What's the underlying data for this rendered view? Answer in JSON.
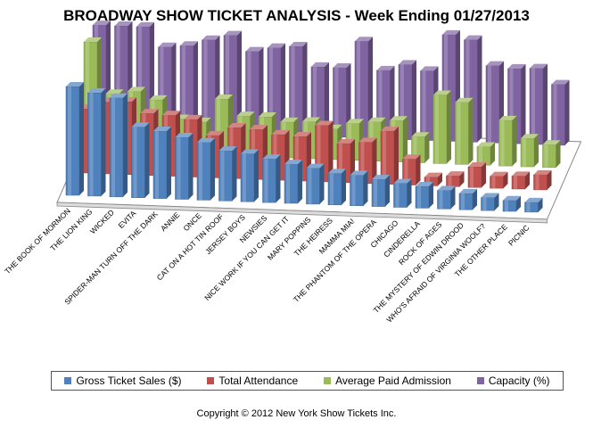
{
  "chart_data": {
    "type": "bar",
    "title": "BROADWAY SHOW TICKET ANALYSIS - Week Ending 01/27/2013",
    "categories": [
      "THE BOOK OF MORMON",
      "THE LION KING",
      "WICKED",
      "EVITA",
      "SPIDER-MAN TURN OFF THE DARK",
      "ANNIE",
      "ONCE",
      "CAT ON A HOT TIN ROOF",
      "JERSEY BOYS",
      "NEWSIES",
      "NICE WORK IF YOU CAN GET IT",
      "MARY POPPINS",
      "THE HEIRESS",
      "MAMMA MIA!",
      "THE PHANTOM OF THE OPERA",
      "CHICAGO",
      "CINDERELLA",
      "ROCK OF AGES",
      "THE MYSTERY OF EDWIN DROOD",
      "WHO'S AFRAID OF VIRGINIA WOOLF?",
      "THE OTHER PLACE",
      "PICNIC"
    ],
    "series": [
      {
        "name": "Gross Ticket Sales ($)",
        "color": "#4f81bd",
        "values": [
          100,
          95,
          91,
          65,
          62,
          57,
          53,
          46,
          44,
          40,
          36,
          33,
          29,
          28,
          25,
          22,
          20,
          17,
          15,
          12,
          10,
          9
        ]
      },
      {
        "name": "Total Attendance",
        "color": "#c0504d",
        "values": [
          59,
          66,
          67,
          57,
          56,
          53,
          39,
          47,
          46,
          42,
          41,
          52,
          36,
          38,
          49,
          24,
          8,
          10,
          19,
          11,
          12,
          14
        ]
      },
      {
        "name": "Average Paid Admission",
        "color": "#9bbb59",
        "values": [
          100,
          53,
          56,
          49,
          32,
          30,
          52,
          37,
          37,
          33,
          34,
          28,
          34,
          36,
          38,
          24,
          63,
          57,
          17,
          42,
          26,
          21
        ]
      },
      {
        "name": "Capacity (%)",
        "color": "#8064a2",
        "values": [
          95,
          95,
          95,
          77,
          79,
          85,
          90,
          76,
          80,
          82,
          64,
          64,
          89,
          63,
          69,
          64,
          98,
          94,
          71,
          69,
          70,
          56
        ]
      }
    ],
    "ylim": [
      0,
      100
    ],
    "legend_position": "bottom",
    "grid": false
  },
  "copyright": "Copyright © 2012 New York Show Tickets Inc."
}
